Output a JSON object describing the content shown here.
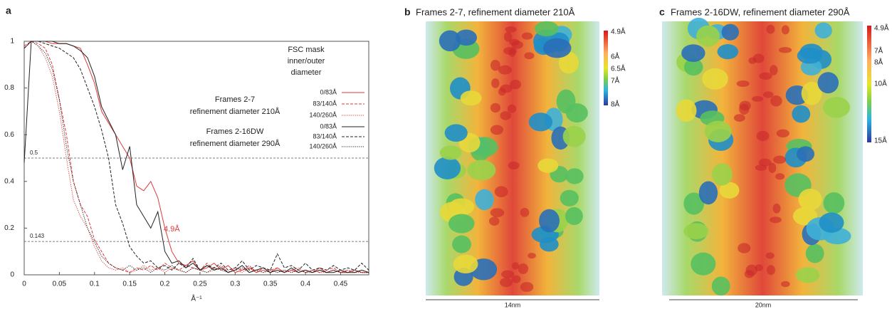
{
  "chart_data": {
    "type": "line",
    "panel_letter": "a",
    "x_label": "Å⁻¹",
    "x": [
      0,
      0.01,
      0.02,
      0.03,
      0.04,
      0.05,
      0.06,
      0.07,
      0.08,
      0.09,
      0.1,
      0.11,
      0.12,
      0.13,
      0.14,
      0.15,
      0.16,
      0.17,
      0.18,
      0.19,
      0.2,
      0.21,
      0.22,
      0.23,
      0.24,
      0.25,
      0.26,
      0.27,
      0.28,
      0.29,
      0.3,
      0.31,
      0.32,
      0.33,
      0.34,
      0.35,
      0.36,
      0.37,
      0.38,
      0.39,
      0.4,
      0.41,
      0.42,
      0.43,
      0.44,
      0.45,
      0.46,
      0.47,
      0.48,
      0.49
    ],
    "xlim": [
      0,
      0.49
    ],
    "ylim": [
      0,
      1
    ],
    "xticks": [
      0,
      0.05,
      0.1,
      0.15,
      0.2,
      0.25,
      0.3,
      0.35,
      0.4,
      0.45
    ],
    "yticks": [
      0,
      0.2,
      0.4,
      0.6,
      0.8,
      1
    ],
    "reference_lines": [
      0.5,
      0.143
    ],
    "legend_title": [
      "FSC mask",
      "inner/outer",
      "diameter"
    ],
    "groups": [
      {
        "label": [
          "Frames 2-7",
          "refinement diameter 210Å"
        ]
      },
      {
        "label": [
          "Frames 2-16DW",
          "refinement diameter 290Å"
        ]
      }
    ],
    "annotation": {
      "text": "4.9Å",
      "color": "#e03a3a"
    },
    "series": [
      {
        "name": "0/83Å",
        "group": 0,
        "color": "#e03a3a",
        "dash": "solid",
        "values": [
          0.97,
          1,
          1,
          1,
          0.99,
          0.99,
          0.99,
          0.98,
          0.97,
          0.9,
          0.82,
          0.7,
          0.65,
          0.6,
          0.55,
          0.5,
          0.38,
          0.36,
          0.4,
          0.33,
          0.2,
          0.1,
          0.05,
          0.04,
          0.06,
          0.02,
          0.03,
          0.05,
          0.02,
          0.04,
          0.01,
          0.02,
          0.03,
          0.01,
          0.02,
          0.01,
          0.03,
          0.01,
          0.02,
          0.01,
          0.02,
          0.01,
          0.03,
          0.01,
          0.02,
          0.01,
          0.01,
          0.02,
          0.01,
          0.01
        ]
      },
      {
        "name": "83/140Å",
        "group": 0,
        "color": "#e03a3a",
        "dash": "dashed",
        "values": [
          0.98,
          1,
          0.99,
          0.97,
          0.9,
          0.75,
          0.6,
          0.4,
          0.3,
          0.25,
          0.15,
          0.1,
          0.05,
          0.03,
          0.02,
          0.01,
          0.03,
          0.02,
          0.04,
          0.02,
          0.05,
          0.03,
          0.02,
          0.04,
          0.03,
          0.02,
          0.05,
          0.02,
          0.04,
          0.01,
          0.03,
          0.02,
          0.04,
          0.01,
          0.03,
          0.02,
          0.03,
          0.01,
          0.02,
          0.03,
          0.01,
          0.02,
          0.01,
          0.02,
          0.03,
          0.01,
          0.02,
          0.01,
          0.02,
          0.01
        ]
      },
      {
        "name": "140/260Å",
        "group": 0,
        "color": "#e03a3a",
        "dash": "dotted",
        "values": [
          0.97,
          1,
          0.98,
          0.93,
          0.85,
          0.7,
          0.5,
          0.32,
          0.25,
          0.2,
          0.12,
          0.06,
          0.03,
          0.02,
          0.03,
          0.01,
          0.02,
          0.04,
          0.02,
          0.03,
          0.01,
          0.03,
          0.02,
          0.01,
          0.03,
          0.02,
          0.01,
          0.02,
          0.03,
          0.01,
          0.02,
          0.01,
          0.03,
          0.02,
          0.01,
          0.02,
          0.01,
          0.02,
          0.01,
          0.02,
          0.01,
          0.02,
          0.01,
          0.01,
          0.02,
          0.01,
          0.02,
          0.01,
          0.01,
          0.01
        ]
      },
      {
        "name": "0/83Å",
        "group": 1,
        "color": "#222222",
        "dash": "solid",
        "values": [
          0.48,
          1,
          1,
          1,
          1,
          0.99,
          0.99,
          0.98,
          0.96,
          0.93,
          0.85,
          0.72,
          0.66,
          0.6,
          0.45,
          0.55,
          0.3,
          0.25,
          0.2,
          0.27,
          0.1,
          0.05,
          0.06,
          0.03,
          0.05,
          0.02,
          0.04,
          0.02,
          0.03,
          0.01,
          0.02,
          0.04,
          0.01,
          0.02,
          0.03,
          0.01,
          0.02,
          0.01,
          0.03,
          0.01,
          0.02,
          0.01,
          0.02,
          0.01,
          0.01,
          0.02,
          0.01,
          0.01,
          0.02,
          0.01
        ]
      },
      {
        "name": "83/140Å",
        "group": 1,
        "color": "#222222",
        "dash": "dashed",
        "values": [
          0.97,
          1,
          1,
          0.99,
          0.98,
          0.97,
          0.95,
          0.93,
          0.88,
          0.8,
          0.72,
          0.62,
          0.5,
          0.3,
          0.22,
          0.12,
          0.08,
          0.05,
          0.06,
          0.03,
          0.04,
          0.02,
          0.05,
          0.03,
          0.07,
          0.02,
          0.04,
          0.03,
          0.05,
          0.02,
          0.03,
          0.06,
          0.02,
          0.04,
          0.03,
          0.02,
          0.09,
          0.03,
          0.04,
          0.02,
          0.05,
          0.02,
          0.03,
          0.02,
          0.04,
          0.02,
          0.03,
          0.02,
          0.05,
          0.02
        ]
      },
      {
        "name": "140/260Å",
        "group": 1,
        "color": "#222222",
        "dash": "dotted",
        "values": [
          0.97,
          1,
          0.98,
          0.95,
          0.88,
          0.75,
          0.55,
          0.4,
          0.3,
          0.2,
          0.14,
          0.08,
          0.05,
          0.03,
          0.02,
          0.04,
          0.02,
          0.03,
          0.01,
          0.03,
          0.02,
          0.04,
          0.02,
          0.01,
          0.03,
          0.02,
          0.01,
          0.03,
          0.02,
          0.01,
          0.02,
          0.03,
          0.01,
          0.02,
          0.01,
          0.02,
          0.01,
          0.02,
          0.01,
          0.02,
          0.01,
          0.01,
          0.02,
          0.01,
          0.02,
          0.01,
          0.01,
          0.02,
          0.01,
          0.01
        ]
      }
    ]
  },
  "panels": [
    {
      "letter": "b",
      "title": "Frames 2-7, refinement diameter 210Å",
      "colorbar_labels": [
        "4.9Å",
        "6Å",
        "6.5Å",
        "7Å",
        "8Å"
      ],
      "scale_bar": "14nm"
    },
    {
      "letter": "c",
      "title": "Frames 2-16DW, refinement diameter 290Å",
      "colorbar_labels": [
        "4.9Å",
        "7Å",
        "8Å",
        "10Å",
        "15Å"
      ],
      "scale_bar": "20nm"
    }
  ]
}
